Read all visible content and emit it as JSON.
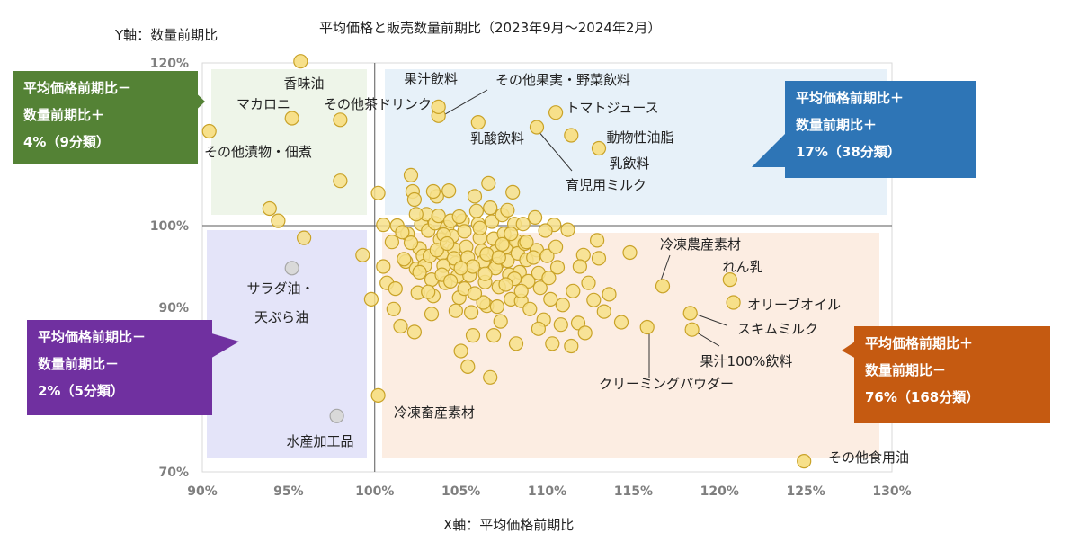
{
  "chart_data": {
    "type": "scatter",
    "title": "平均価格と販売数量前期比（2023年9月～2024年2月）",
    "xlabel": "X軸：平均価格前期比",
    "ylabel": "Y軸：数量前期比",
    "xlim": [
      90,
      130
    ],
    "ylim": [
      70,
      120
    ],
    "x_ticks": [
      "90%",
      "95%",
      "100%",
      "105%",
      "110%",
      "115%",
      "120%",
      "125%",
      "130%"
    ],
    "y_ticks": [
      "70%",
      "90%",
      "100%",
      "120%"
    ],
    "y_tick_values": [
      70,
      90,
      100,
      120
    ],
    "reference_lines": {
      "x": 100,
      "y": 100
    },
    "grid": false,
    "point_color": "#f7e08a",
    "point_edge": "#c9a227",
    "quadrant_colors": {
      "upper_left": "#e2efda",
      "upper_right": "#ddebf7",
      "lower_left": "#d9d9f7",
      "lower_right": "#fbe5d6"
    },
    "labeled_points": [
      {
        "label": "香味油",
        "x": 95.7,
        "y": 120.2
      },
      {
        "label": "マカロニ",
        "x": 95.2,
        "y": 113.2
      },
      {
        "label": "その他茶ドリンク",
        "x": 98.0,
        "y": 113.0
      },
      {
        "label": "その他漬物・佃煮",
        "x": 90.4,
        "y": 111.6
      },
      {
        "label": "果汁飲料",
        "x": 103.7,
        "y": 113.5
      },
      {
        "label": "その他果実・野菜飲料",
        "x": 103.7,
        "y": 114.6
      },
      {
        "label": "トマトジュース",
        "x": 110.5,
        "y": 113.9
      },
      {
        "label": "乳酸飲料",
        "x": 106.0,
        "y": 112.7
      },
      {
        "label": "育児用ミルク",
        "x": 109.4,
        "y": 112.1
      },
      {
        "label": "動物性油脂",
        "x": 111.4,
        "y": 111.1
      },
      {
        "label": "乳飲料",
        "x": 113.0,
        "y": 109.5
      },
      {
        "label": "冷凍農産素材",
        "x": 116.7,
        "y": 92.6
      },
      {
        "label": "れん乳",
        "x": 120.6,
        "y": 93.4
      },
      {
        "label": "オリーブオイル",
        "x": 120.8,
        "y": 90.6
      },
      {
        "label": "スキムミルク",
        "x": 118.3,
        "y": 89.3
      },
      {
        "label": "果汁100%飲料",
        "x": 118.4,
        "y": 87.3
      },
      {
        "label": "クリーミングパウダー",
        "x": 115.8,
        "y": 87.6
      },
      {
        "label": "その他食用油",
        "x": 124.9,
        "y": 71.3
      },
      {
        "label": "冷凍畜産素材",
        "x": 100.2,
        "y": 79.3
      },
      {
        "label": "サラダ油・",
        "x": 95.2,
        "y": 94.8
      },
      {
        "label": "天ぷら油",
        "x": 95.2,
        "y": 94.8
      },
      {
        "label": "水産加工品",
        "x": 97.8,
        "y": 76.8
      }
    ],
    "other_points": [
      [
        98.0,
        105.5
      ],
      [
        93.9,
        102.1
      ],
      [
        94.4,
        100.6
      ],
      [
        95.9,
        98.5
      ],
      [
        99.3,
        96.4
      ],
      [
        99.8,
        91.0
      ],
      [
        100.2,
        104.0
      ],
      [
        100.5,
        100.1
      ],
      [
        101.3,
        100.0
      ],
      [
        100.5,
        95.0
      ],
      [
        100.7,
        93.0
      ],
      [
        101.1,
        89.8
      ],
      [
        101.5,
        87.7
      ],
      [
        101.8,
        95.6
      ],
      [
        101.9,
        99.0
      ],
      [
        102.1,
        106.2
      ],
      [
        102.2,
        104.2
      ],
      [
        102.3,
        103.2
      ],
      [
        102.4,
        94.7
      ],
      [
        102.5,
        91.8
      ],
      [
        102.6,
        97.2
      ],
      [
        102.7,
        100.2
      ],
      [
        102.8,
        96.3
      ],
      [
        102.9,
        95.1
      ],
      [
        103.0,
        101.4
      ],
      [
        103.1,
        99.4
      ],
      [
        103.2,
        96.3
      ],
      [
        103.3,
        93.4
      ],
      [
        103.4,
        91.4
      ],
      [
        103.5,
        100.3
      ],
      [
        103.6,
        103.6
      ],
      [
        103.7,
        101.2
      ],
      [
        103.8,
        98.3
      ],
      [
        103.9,
        96.6
      ],
      [
        104.0,
        95.1
      ],
      [
        104.1,
        93.0
      ],
      [
        104.2,
        99.8
      ],
      [
        104.3,
        104.3
      ],
      [
        104.4,
        100.6
      ],
      [
        104.5,
        98.7
      ],
      [
        104.6,
        97.1
      ],
      [
        104.7,
        95.4
      ],
      [
        104.8,
        93.8
      ],
      [
        104.9,
        91.2
      ],
      [
        105.0,
        84.7
      ],
      [
        105.1,
        100.6
      ],
      [
        105.2,
        99.3
      ],
      [
        105.3,
        97.4
      ],
      [
        105.4,
        96.1
      ],
      [
        105.5,
        93.9
      ],
      [
        105.6,
        89.4
      ],
      [
        105.7,
        86.6
      ],
      [
        105.8,
        103.6
      ],
      [
        105.9,
        101.8
      ],
      [
        106.0,
        100.2
      ],
      [
        106.1,
        98.5
      ],
      [
        106.2,
        96.9
      ],
      [
        106.3,
        95.6
      ],
      [
        106.4,
        93.1
      ],
      [
        106.5,
        90.2
      ],
      [
        106.6,
        105.2
      ],
      [
        106.7,
        102.2
      ],
      [
        106.8,
        100.5
      ],
      [
        106.9,
        98.4
      ],
      [
        107.0,
        96.8
      ],
      [
        107.1,
        95.3
      ],
      [
        107.2,
        92.5
      ],
      [
        107.3,
        88.3
      ],
      [
        107.4,
        101.3
      ],
      [
        107.5,
        99.0
      ],
      [
        107.6,
        97.4
      ],
      [
        107.7,
        95.7
      ],
      [
        107.8,
        94.0
      ],
      [
        107.9,
        91.0
      ],
      [
        108.0,
        104.1
      ],
      [
        108.1,
        100.2
      ],
      [
        108.2,
        98.1
      ],
      [
        108.3,
        96.6
      ],
      [
        108.4,
        94.3
      ],
      [
        108.5,
        90.8
      ],
      [
        108.6,
        100.2
      ],
      [
        108.7,
        97.8
      ],
      [
        108.8,
        95.8
      ],
      [
        108.9,
        93.2
      ],
      [
        109.0,
        89.8
      ],
      [
        109.3,
        101.0
      ],
      [
        109.4,
        97.0
      ],
      [
        109.5,
        94.2
      ],
      [
        109.6,
        92.4
      ],
      [
        109.8,
        88.5
      ],
      [
        110.0,
        96.3
      ],
      [
        110.2,
        91.0
      ],
      [
        110.4,
        100.1
      ],
      [
        110.6,
        94.9
      ],
      [
        110.9,
        90.3
      ],
      [
        111.2,
        99.5
      ],
      [
        111.5,
        92.0
      ],
      [
        111.8,
        88.1
      ],
      [
        112.1,
        96.4
      ],
      [
        112.4,
        93.0
      ],
      [
        112.7,
        90.9
      ],
      [
        113.0,
        96.0
      ],
      [
        113.3,
        89.5
      ],
      [
        113.6,
        91.6
      ],
      [
        114.3,
        88.2
      ],
      [
        114.8,
        96.7
      ],
      [
        112.2,
        86.9
      ],
      [
        110.8,
        87.9
      ],
      [
        111.4,
        85.3
      ],
      [
        105.4,
        82.8
      ],
      [
        106.7,
        81.5
      ],
      [
        102.3,
        87.0
      ],
      [
        101.2,
        92.3
      ],
      [
        103.4,
        104.2
      ],
      [
        104.9,
        101.1
      ],
      [
        107.7,
        101.9
      ],
      [
        108.8,
        98.0
      ],
      [
        106.5,
        96.5
      ],
      [
        103.9,
        94.0
      ],
      [
        102.1,
        97.9
      ],
      [
        101.6,
        99.2
      ],
      [
        104.6,
        96.0
      ],
      [
        105.2,
        92.3
      ],
      [
        106.3,
        90.6
      ],
      [
        107.0,
        94.8
      ],
      [
        108.1,
        93.5
      ],
      [
        109.2,
        96.1
      ],
      [
        110.5,
        97.4
      ],
      [
        101.0,
        98.0
      ],
      [
        102.4,
        101.4
      ],
      [
        104.0,
        98.9
      ],
      [
        105.7,
        95.0
      ],
      [
        107.4,
        97.7
      ],
      [
        109.9,
        99.4
      ],
      [
        103.1,
        91.9
      ],
      [
        104.4,
        93.2
      ],
      [
        105.8,
        91.7
      ],
      [
        107.1,
        90.1
      ],
      [
        108.5,
        92.0
      ],
      [
        106.1,
        99.7
      ],
      [
        107.9,
        99.0
      ],
      [
        103.6,
        97.0
      ],
      [
        102.6,
        94.3
      ],
      [
        101.7,
        95.9
      ],
      [
        105.0,
        94.8
      ],
      [
        104.2,
        97.8
      ],
      [
        106.4,
        94.1
      ],
      [
        107.6,
        92.8
      ],
      [
        110.1,
        93.6
      ],
      [
        111.9,
        95.0
      ],
      [
        112.9,
        98.2
      ],
      [
        106.9,
        86.6
      ],
      [
        108.2,
        85.6
      ],
      [
        109.5,
        87.4
      ],
      [
        110.3,
        85.6
      ],
      [
        104.7,
        89.6
      ],
      [
        103.3,
        89.2
      ],
      [
        107.2,
        96.1
      ]
    ]
  }
}
